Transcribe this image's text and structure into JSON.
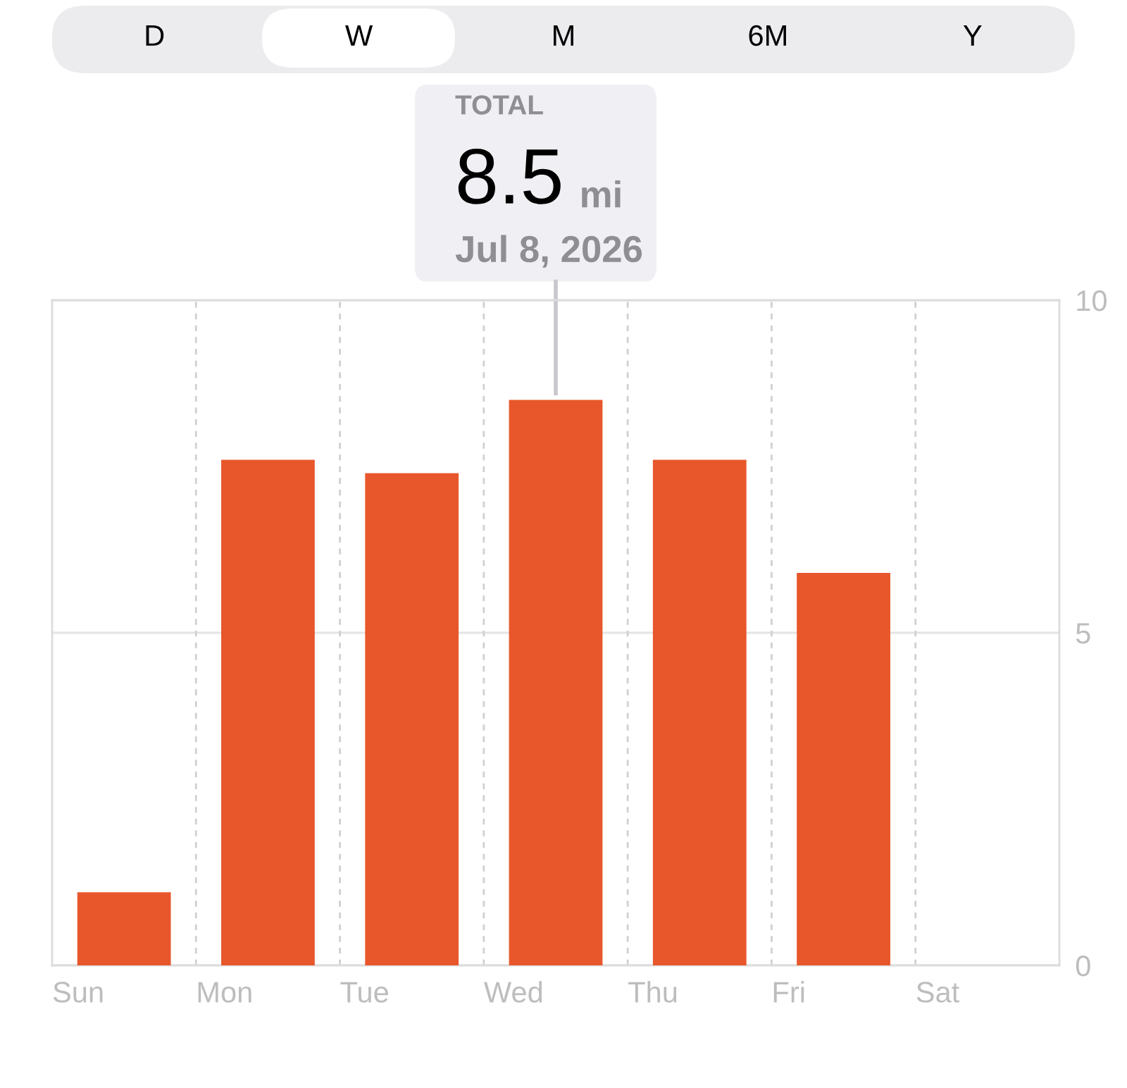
{
  "chart_data": {
    "type": "bar",
    "categories": [
      "Sun",
      "Mon",
      "Tue",
      "Wed",
      "Thu",
      "Fri",
      "Sat"
    ],
    "values": [
      1.1,
      7.6,
      7.4,
      8.5,
      7.6,
      5.9,
      null
    ],
    "color": "#e8572b",
    "ylim": [
      0,
      10
    ],
    "yticks": [
      0,
      5,
      10
    ],
    "grid": true,
    "legend": false,
    "annotations": [
      "D",
      "W",
      "M",
      "6M",
      "Y",
      "TOTAL",
      {
        "text": "8.5",
        "x": "Wed",
        "y": 8.5
      },
      "mi",
      "Jul 8, 2026"
    ]
  }
}
